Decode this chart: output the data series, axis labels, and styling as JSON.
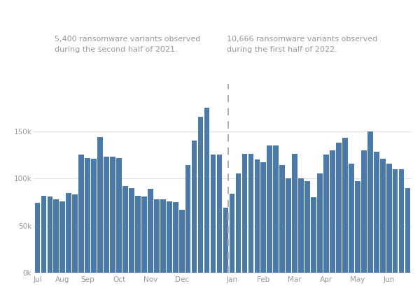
{
  "values": [
    74000,
    82000,
    81000,
    78000,
    76000,
    85000,
    83000,
    125000,
    122000,
    121000,
    144000,
    123000,
    123000,
    122000,
    92000,
    90000,
    82000,
    81000,
    89000,
    78000,
    78000,
    76000,
    75000,
    67000,
    114000,
    140000,
    165000,
    175000,
    125000,
    125000,
    69000,
    84000,
    105000,
    126000,
    126000,
    120000,
    117000,
    135000,
    135000,
    114000,
    100000,
    126000,
    100000,
    97000,
    80000,
    105000,
    125000,
    130000,
    138000,
    143000,
    116000,
    97000,
    130000,
    150000,
    128000,
    121000,
    116000,
    110000,
    110000,
    90000
  ],
  "divider_index": 30,
  "bar_color": "#4a7aab",
  "background_color": "#ffffff",
  "grid_color": "#e0e0e0",
  "divider_color": "#b0b0b0",
  "text_color": "#999999",
  "annotation_left": "5,400 ransomware variants observed\nduring the second half of 2021.",
  "annotation_right": "10,666 ransomware variants observed\nduring the first half of 2022.",
  "month_labels": [
    "Jul",
    "Aug",
    "Sep",
    "Oct",
    "Nov",
    "Dec",
    "Jan",
    "Feb",
    "Mar",
    "Apr",
    "May",
    "Jun"
  ],
  "month_tick_positions": [
    0,
    4,
    8,
    13,
    18,
    23,
    31,
    36,
    41,
    46,
    51,
    56
  ],
  "ylim": [
    0,
    200000
  ],
  "yticks": [
    0,
    50000,
    100000,
    150000
  ],
  "n_bars": 60
}
